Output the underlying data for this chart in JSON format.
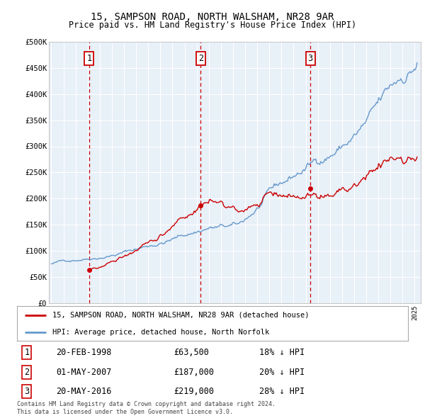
{
  "title": "15, SAMPSON ROAD, NORTH WALSHAM, NR28 9AR",
  "subtitle": "Price paid vs. HM Land Registry's House Price Index (HPI)",
  "ylim": [
    0,
    500000
  ],
  "xlim_start": 1994.8,
  "xlim_end": 2025.5,
  "sales": [
    {
      "num": 1,
      "date": "20-FEB-1998",
      "year": 1998.12,
      "price": 63500,
      "label": "18% ↓ HPI"
    },
    {
      "num": 2,
      "date": "01-MAY-2007",
      "year": 2007.33,
      "price": 187000,
      "label": "20% ↓ HPI"
    },
    {
      "num": 3,
      "date": "20-MAY-2016",
      "year": 2016.38,
      "price": 219000,
      "label": "28% ↓ HPI"
    }
  ],
  "legend_line1": "15, SAMPSON ROAD, NORTH WALSHAM, NR28 9AR (detached house)",
  "legend_line2": "HPI: Average price, detached house, North Norfolk",
  "footnote1": "Contains HM Land Registry data © Crown copyright and database right 2024.",
  "footnote2": "This data is licensed under the Open Government Licence v3.0.",
  "red_color": "#cc0000",
  "blue_color": "#6699cc",
  "plot_bg": "#e8f0f8",
  "grid_color": "#ffffff"
}
